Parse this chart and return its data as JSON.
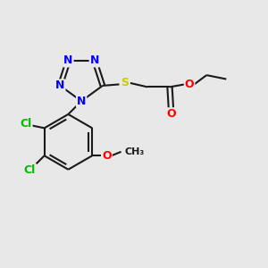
{
  "bg_color": "#e8e8e8",
  "bond_color": "#1a1a1a",
  "N_color": "#0000ff",
  "Cl_color": "#00bb00",
  "S_color": "#cccc00",
  "O_color": "#ff0000",
  "C_color": "#1a1a1a",
  "line_width": 1.5,
  "font_size": 9,
  "figsize": [
    3.0,
    3.0
  ],
  "dpi": 100,
  "xlim": [
    0,
    10
  ],
  "ylim": [
    0,
    10
  ]
}
